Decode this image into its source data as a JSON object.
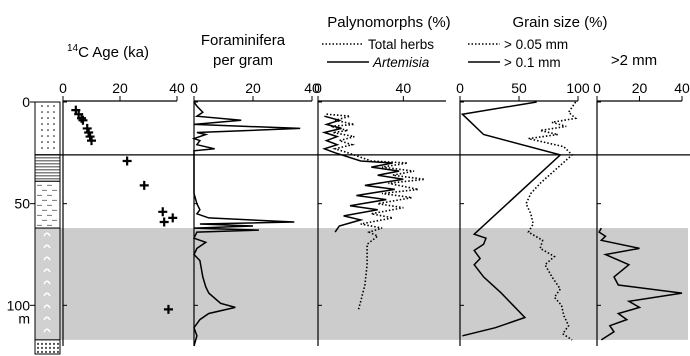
{
  "depth_axis": {
    "ticks": [
      "0",
      "50",
      "100"
    ],
    "unit": "m",
    "range": [
      0,
      120
    ]
  },
  "shaded_interval": [
    62,
    117
  ],
  "horizontal_line_depth": 26,
  "colors": {
    "shade": "#cccccc",
    "line": "#000000"
  },
  "chart_data": [
    {
      "type": "scatter",
      "title": "14C Age (ka)",
      "title_sup": "14",
      "title_rest": "C Age (ka)",
      "x_ticks": [
        "0",
        "20",
        "40"
      ],
      "xlim": [
        0,
        40
      ],
      "marker": "plus",
      "points": [
        {
          "x": 4.5,
          "y": 4
        },
        {
          "x": 5.5,
          "y": 6
        },
        {
          "x": 6.5,
          "y": 8
        },
        {
          "x": 7,
          "y": 9
        },
        {
          "x": 8.5,
          "y": 13
        },
        {
          "x": 9,
          "y": 15
        },
        {
          "x": 9.5,
          "y": 17
        },
        {
          "x": 10,
          "y": 19
        },
        {
          "x": 22.5,
          "y": 29
        },
        {
          "x": 28.5,
          "y": 41
        },
        {
          "x": 35,
          "y": 54
        },
        {
          "x": 35.5,
          "y": 59
        },
        {
          "x": 38.5,
          "y": 57
        },
        {
          "x": 37,
          "y": 102
        }
      ]
    },
    {
      "type": "line",
      "title_lines": [
        "Foraminifera",
        "per gram"
      ],
      "x_ticks": [
        "0",
        "20",
        "40"
      ],
      "xlim": [
        0,
        40
      ],
      "series": [
        {
          "style": "solid",
          "values": [
            [
              0,
              0
            ],
            [
              1,
              2
            ],
            [
              3,
              5
            ],
            [
              1,
              7
            ],
            [
              16,
              9
            ],
            [
              0,
              11
            ],
            [
              36,
              13
            ],
            [
              1,
              15
            ],
            [
              4,
              16
            ],
            [
              0,
              18
            ],
            [
              2,
              19
            ],
            [
              1,
              21
            ],
            [
              7,
              23
            ],
            [
              0,
              24
            ],
            [
              0,
              26
            ],
            [
              0,
              45
            ],
            [
              1,
              50
            ],
            [
              2,
              53
            ],
            [
              1,
              55
            ],
            [
              5,
              57
            ],
            [
              34,
              59
            ],
            [
              2,
              60
            ],
            [
              20,
              61
            ],
            [
              0,
              62
            ],
            [
              22,
              63
            ],
            [
              1,
              64
            ],
            [
              0,
              67
            ],
            [
              4,
              69
            ],
            [
              1,
              72
            ],
            [
              0,
              75
            ],
            [
              2,
              78
            ],
            [
              3,
              86
            ],
            [
              4,
              91
            ],
            [
              5,
              94
            ],
            [
              9,
              99
            ],
            [
              14,
              101
            ],
            [
              5,
              104
            ],
            [
              2,
              107
            ],
            [
              0,
              111
            ],
            [
              1,
              115
            ],
            [
              0,
              120
            ]
          ]
        }
      ]
    },
    {
      "type": "line",
      "title": "Palynomorphs (%)",
      "x_ticks": [
        "0",
        "40"
      ],
      "xlim": [
        0,
        60
      ],
      "series": [
        {
          "name": "Total herbs",
          "style": "dotted",
          "values": [
            [
              4,
              6
            ],
            [
              15,
              7
            ],
            [
              8,
              9
            ],
            [
              17,
              11
            ],
            [
              6,
              12
            ],
            [
              14,
              14
            ],
            [
              7,
              15
            ],
            [
              17,
              17
            ],
            [
              10,
              19
            ],
            [
              16,
              21
            ],
            [
              8,
              23
            ],
            [
              14,
              25
            ],
            [
              25,
              29
            ],
            [
              42,
              30
            ],
            [
              30,
              32
            ],
            [
              45,
              34
            ],
            [
              35,
              36
            ],
            [
              50,
              38
            ],
            [
              33,
              40
            ],
            [
              47,
              43
            ],
            [
              30,
              45
            ],
            [
              44,
              47
            ],
            [
              28,
              50
            ],
            [
              40,
              52
            ],
            [
              25,
              55
            ],
            [
              35,
              57
            ],
            [
              20,
              60
            ],
            [
              30,
              62
            ],
            [
              24,
              64
            ],
            [
              28,
              66
            ],
            [
              23,
              70
            ],
            [
              23,
              80
            ],
            [
              22,
              90
            ],
            [
              20,
              98
            ],
            [
              19,
              102
            ]
          ]
        },
        {
          "name": "Artemisia",
          "style": "solid",
          "values": [
            [
              3,
              7
            ],
            [
              10,
              9
            ],
            [
              4,
              11
            ],
            [
              11,
              13
            ],
            [
              3,
              15
            ],
            [
              9,
              17
            ],
            [
              4,
              19
            ],
            [
              9,
              21
            ],
            [
              3,
              23
            ],
            [
              8,
              25
            ],
            [
              20,
              29
            ],
            [
              35,
              30
            ],
            [
              25,
              32
            ],
            [
              38,
              34
            ],
            [
              28,
              36
            ],
            [
              40,
              38
            ],
            [
              22,
              41
            ],
            [
              36,
              43
            ],
            [
              18,
              46
            ],
            [
              32,
              48
            ],
            [
              15,
              51
            ],
            [
              28,
              53
            ],
            [
              12,
              56
            ],
            [
              20,
              58
            ],
            [
              10,
              61
            ],
            [
              8,
              64
            ]
          ]
        }
      ]
    },
    {
      "type": "line",
      "title": "Grain size (%)",
      "x_ticks": [
        "0",
        "50",
        "100"
      ],
      "xlim": [
        0,
        100
      ],
      "series": [
        {
          "name": "> 0.05 mm",
          "style": "dotted",
          "values": [
            [
              98,
              0
            ],
            [
              92,
              5
            ],
            [
              98,
              8
            ],
            [
              78,
              10
            ],
            [
              90,
              12
            ],
            [
              68,
              14
            ],
            [
              83,
              16
            ],
            [
              58,
              18
            ],
            [
              88,
              22
            ],
            [
              95,
              26
            ],
            [
              68,
              40
            ],
            [
              60,
              45
            ],
            [
              56,
              50
            ],
            [
              60,
              55
            ],
            [
              62,
              60
            ],
            [
              58,
              64
            ],
            [
              70,
              68
            ],
            [
              68,
              72
            ],
            [
              80,
              76
            ],
            [
              72,
              80
            ],
            [
              78,
              86
            ],
            [
              85,
              92
            ],
            [
              80,
              96
            ],
            [
              86,
              100
            ],
            [
              88,
              105
            ],
            [
              92,
              110
            ],
            [
              87,
              114
            ],
            [
              95,
              117
            ]
          ]
        },
        {
          "name": "> 0.1 mm",
          "style": "solid",
          "values": [
            [
              65,
              0
            ],
            [
              2,
              6
            ],
            [
              20,
              16
            ],
            [
              85,
              26
            ],
            [
              12,
              65
            ],
            [
              22,
              67
            ],
            [
              20,
              70
            ],
            [
              12,
              73
            ],
            [
              17,
              77
            ],
            [
              12,
              80
            ],
            [
              20,
              86
            ],
            [
              35,
              94
            ],
            [
              45,
              100
            ],
            [
              55,
              106
            ],
            [
              30,
              111
            ],
            [
              2,
              115
            ]
          ]
        }
      ]
    },
    {
      "type": "line",
      "title": ">2 mm",
      "x_ticks": [
        "0",
        "20",
        "40"
      ],
      "xlim": [
        0,
        40
      ],
      "series": [
        {
          "style": "solid",
          "values": [
            [
              2,
              62
            ],
            [
              1,
              64
            ],
            [
              4,
              66
            ],
            [
              2,
              68
            ],
            [
              20,
              72
            ],
            [
              4,
              75
            ],
            [
              15,
              80
            ],
            [
              8,
              86
            ],
            [
              10,
              90
            ],
            [
              40,
              94
            ],
            [
              15,
              98
            ],
            [
              20,
              101
            ],
            [
              10,
              104
            ],
            [
              14,
              107
            ],
            [
              6,
              110
            ],
            [
              8,
              113
            ],
            [
              2,
              117
            ]
          ]
        }
      ]
    }
  ]
}
